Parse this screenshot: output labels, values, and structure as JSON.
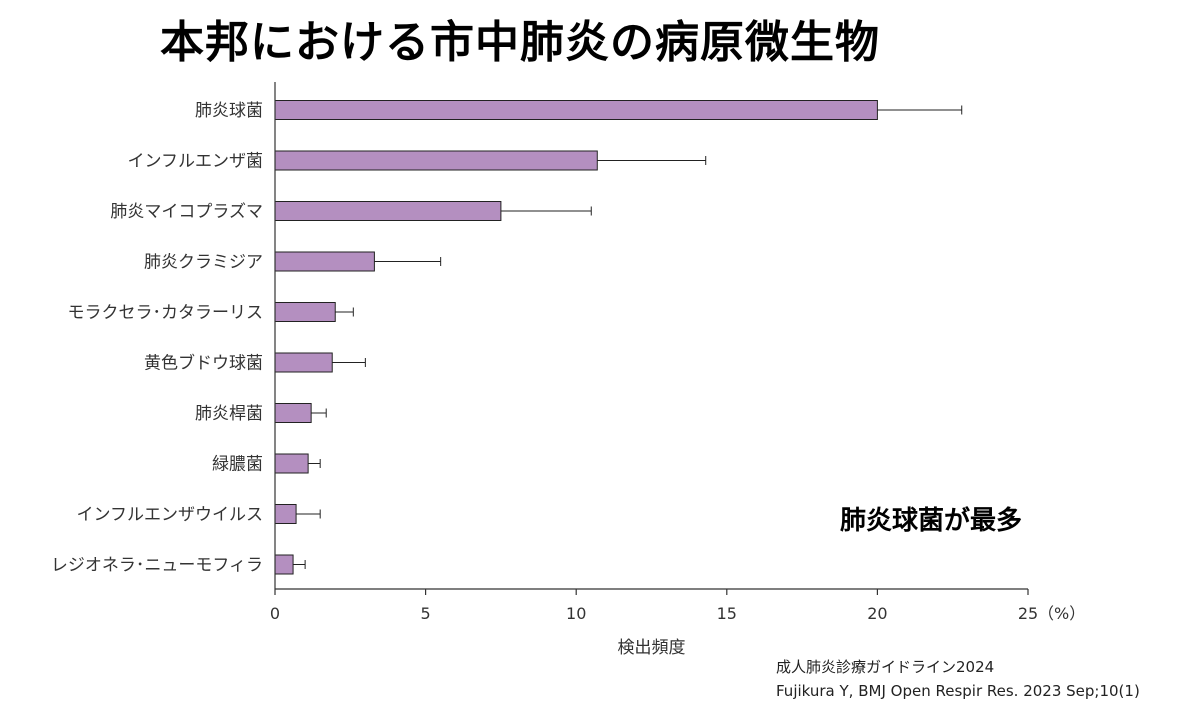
{
  "title": "本邦における市中肺炎の病原微生物",
  "callout": "肺炎球菌が最多",
  "source": {
    "line1": "成人肺炎診療ガイドライン2024",
    "line2": "Fujikura Y, BMJ Open Respir Res. 2023 Sep;10(1)"
  },
  "colors": {
    "bar": "#b48fc0",
    "bar_border": "#222222",
    "axis": "#333333"
  },
  "chart_data": {
    "type": "bar",
    "orientation": "horizontal",
    "categories": [
      "肺炎球菌",
      "インフルエンザ菌",
      "肺炎マイコプラズマ",
      "肺炎クラミジア",
      "モラクセラ･カタラーリス",
      "黄色ブドウ球菌",
      "肺炎桿菌",
      "緑膿菌",
      "インフルエンザウイルス",
      "レジオネラ･ニューモフィラ"
    ],
    "values": [
      20.0,
      10.7,
      7.5,
      3.3,
      2.0,
      1.9,
      1.2,
      1.1,
      0.7,
      0.6
    ],
    "error_upper": [
      22.8,
      14.3,
      10.5,
      5.5,
      2.6,
      3.0,
      1.7,
      1.5,
      1.5,
      1.0
    ],
    "xlabel": "検出頻度",
    "xunit": "（%）",
    "xlim": [
      0,
      25
    ],
    "xticks": [
      "0",
      "5",
      "10",
      "15",
      "20",
      "25"
    ],
    "grid": false
  }
}
